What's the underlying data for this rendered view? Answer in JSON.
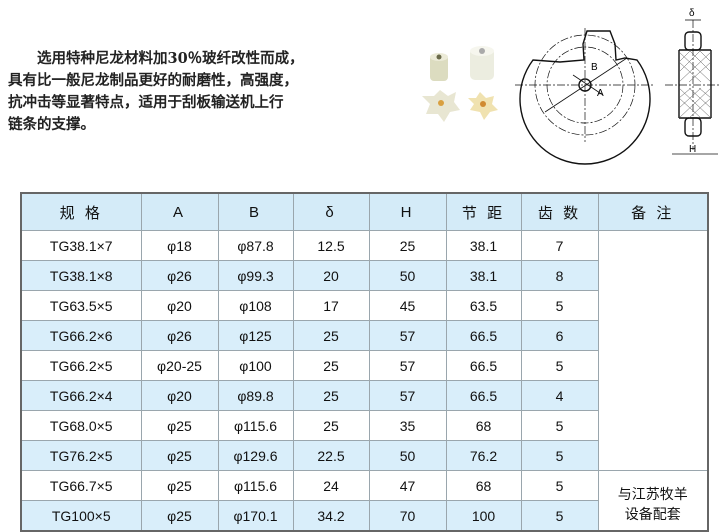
{
  "intro": {
    "lines": [
      "　　选用特种尼龙材料加30％玻纤改性而成，",
      "具有比一般尼龙制品更好的耐磨性，高强度，",
      "抗冲击等显著特点，适用于刮板输送机上行",
      "链条的支撑。"
    ]
  },
  "drawing": {
    "label_b": "B",
    "label_a": "A",
    "label_delta": "δ",
    "label_h": "H"
  },
  "table": {
    "headers": [
      "规 格",
      "A",
      "B",
      "δ",
      "H",
      "节 距",
      "齿 数",
      "备 注"
    ],
    "rows": [
      [
        "TG38.1×7",
        "φ18",
        "φ87.8",
        "12.5",
        "25",
        "38.1",
        "7"
      ],
      [
        "TG38.1×8",
        "φ26",
        "φ99.3",
        "20",
        "50",
        "38.1",
        "8"
      ],
      [
        "TG63.5×5",
        "φ20",
        "φ108",
        "17",
        "45",
        "63.5",
        "5"
      ],
      [
        "TG66.2×6",
        "φ26",
        "φ125",
        "25",
        "57",
        "66.5",
        "6"
      ],
      [
        "TG66.2×5",
        "φ20-25",
        "φ100",
        "25",
        "57",
        "66.5",
        "5"
      ],
      [
        "TG66.2×4",
        "φ20",
        "φ89.8",
        "25",
        "57",
        "66.5",
        "4"
      ],
      [
        "TG68.0×5",
        "φ25",
        "φ115.6",
        "25",
        "35",
        "68",
        "5"
      ],
      [
        "TG76.2×5",
        "φ25",
        "φ129.6",
        "22.5",
        "50",
        "76.2",
        "5"
      ],
      [
        "TG66.7×5",
        "φ25",
        "φ115.6",
        "24",
        "47",
        "68",
        "5"
      ],
      [
        "TG100×5",
        "φ25",
        "φ170.1",
        "34.2",
        "70",
        "100",
        "5"
      ]
    ],
    "remark_lines": [
      "与江苏牧羊",
      "设备配套"
    ],
    "colors": {
      "header_bg": "#d4ebf8",
      "alt_row_bg": "#d9eefa"
    }
  }
}
